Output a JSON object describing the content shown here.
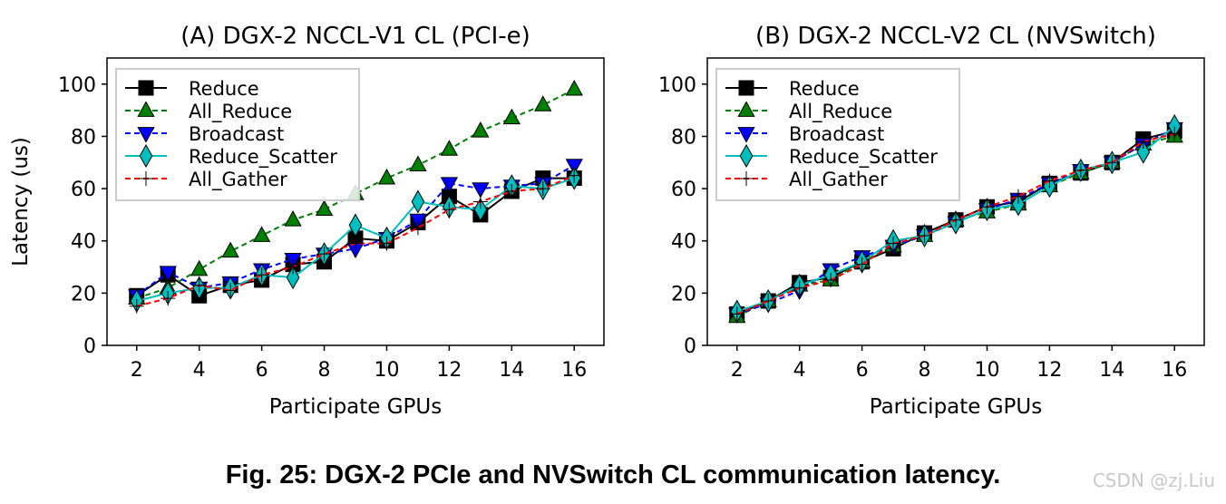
{
  "chart_data": [
    {
      "type": "line",
      "title": "(A) DGX-2 NCCL-V1 CL (PCI-e)",
      "xlabel": "Participate GPUs",
      "ylabel": "Latency (us)",
      "xlim": [
        1.05,
        16.95
      ],
      "ylim": [
        0,
        110
      ],
      "xticks": [
        2,
        4,
        6,
        8,
        10,
        12,
        14,
        16
      ],
      "yticks": [
        0,
        20,
        40,
        60,
        80,
        100
      ],
      "grid": false,
      "legend": "top-left",
      "x": [
        2,
        3,
        4,
        5,
        6,
        7,
        8,
        9,
        10,
        11,
        12,
        13,
        14,
        15,
        16
      ],
      "series": [
        {
          "name": "Reduce",
          "values": [
            19,
            27,
            19,
            23,
            25,
            31,
            32,
            41,
            40,
            47,
            57,
            50,
            59,
            64,
            64
          ]
        },
        {
          "name": "All_Reduce",
          "values": [
            18,
            22,
            29,
            36,
            42,
            48,
            52,
            58,
            64,
            69,
            75,
            82,
            87,
            92,
            98
          ]
        },
        {
          "name": "Broadcast",
          "values": [
            19,
            28,
            22,
            24,
            29,
            33,
            35,
            37,
            41,
            48,
            62,
            60,
            61,
            62,
            69
          ]
        },
        {
          "name": "Reduce_Scatter",
          "values": [
            17,
            20,
            22,
            22,
            27,
            26,
            35,
            46,
            41,
            55,
            53,
            52,
            61,
            60,
            64
          ]
        },
        {
          "name": "All_Gather",
          "values": [
            15,
            18,
            23,
            21,
            27,
            30,
            35,
            39,
            39,
            45,
            52,
            55,
            59,
            60,
            65
          ]
        }
      ]
    },
    {
      "type": "line",
      "title": "(B) DGX-2 NCCL-V2 CL (NVSwitch)",
      "xlabel": "Participate GPUs",
      "ylabel": "",
      "xlim": [
        1.05,
        16.95
      ],
      "ylim": [
        0,
        110
      ],
      "xticks": [
        2,
        4,
        6,
        8,
        10,
        12,
        14,
        16
      ],
      "yticks": [
        0,
        20,
        40,
        60,
        80,
        100
      ],
      "grid": false,
      "legend": "top-left",
      "x": [
        2,
        3,
        4,
        5,
        6,
        7,
        8,
        9,
        10,
        11,
        12,
        13,
        14,
        15,
        16
      ],
      "series": [
        {
          "name": "Reduce",
          "values": [
            12,
            17,
            24,
            26,
            32,
            37,
            43,
            48,
            53,
            55,
            62,
            66,
            70,
            79,
            82
          ]
        },
        {
          "name": "All_Reduce",
          "values": [
            11,
            17,
            23,
            25,
            32,
            38,
            42,
            48,
            51,
            54,
            61,
            66,
            70,
            77,
            80
          ]
        },
        {
          "name": "Broadcast",
          "values": [
            12,
            16,
            21,
            29,
            34,
            38,
            42,
            47,
            52,
            56,
            62,
            67,
            70,
            77,
            83
          ]
        },
        {
          "name": "Reduce_Scatter",
          "values": [
            13,
            17,
            23,
            27,
            32,
            40,
            42,
            47,
            52,
            54,
            61,
            67,
            70,
            74,
            84
          ]
        },
        {
          "name": "All_Gather",
          "values": [
            12,
            17,
            22,
            25,
            31,
            39,
            42,
            48,
            53,
            57,
            63,
            67,
            70,
            78,
            81
          ]
        }
      ]
    }
  ],
  "styles": [
    {
      "color": "#000000",
      "dash": "",
      "marker": "square"
    },
    {
      "color": "#008000",
      "dash": "6,4",
      "marker": "triangle-up"
    },
    {
      "color": "#0000ff",
      "dash": "6,4",
      "marker": "triangle-down"
    },
    {
      "color": "#00bfbf",
      "dash": "",
      "marker": "diamond"
    },
    {
      "color": "#ff0000",
      "dash": "6,4",
      "marker": "plus"
    }
  ],
  "caption": "Fig. 25: DGX-2 PCIe and NVSwitch CL communication latency.",
  "watermark": "CSDN @zj.Liu"
}
